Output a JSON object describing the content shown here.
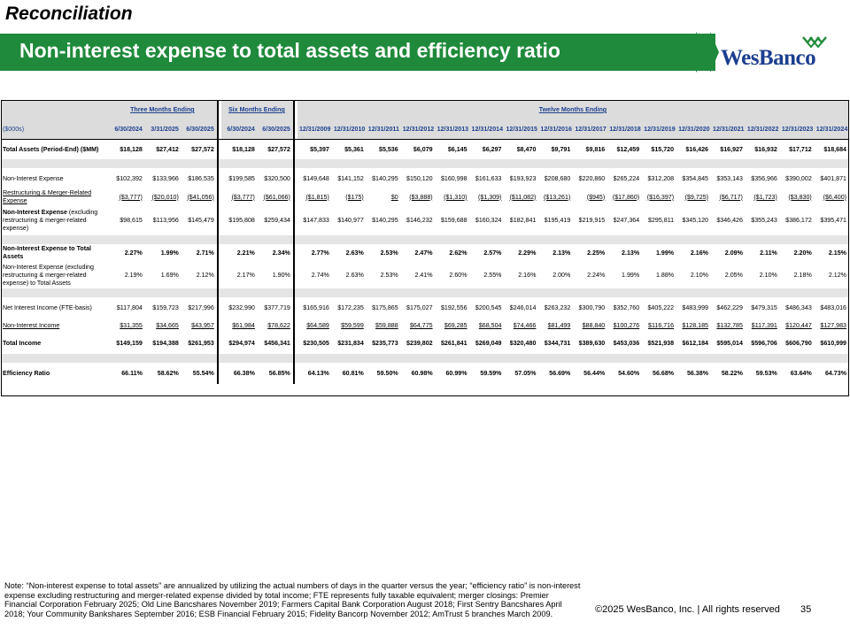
{
  "header": {
    "section": "Reconciliation",
    "title": "Non-interest expense to total assets and efficiency ratio",
    "logo_text": "WesBanco"
  },
  "table": {
    "group_three": "Three Months Ending",
    "group_six": "Six Months Ending",
    "group_twelve": "Twelve Months Ending",
    "unit_label": "($000s)",
    "columns": [
      "6/30/2024",
      "3/31/2025",
      "6/30/2025",
      "6/30/2024",
      "6/30/2025",
      "12/31/2009",
      "12/31/2010",
      "12/31/2011",
      "12/31/2012",
      "12/31/2013",
      "12/31/2014",
      "12/31/2015",
      "12/31/2016",
      "12/31/2017",
      "12/31/2018",
      "12/31/2019",
      "12/31/2020",
      "12/31/2021",
      "12/31/2022",
      "12/31/2023",
      "12/31/2024"
    ],
    "rows": [
      {
        "label": "Total Assets (Period-End) ($MM)",
        "values": [
          "$18,128",
          "$27,412",
          "$27,572",
          "$18,128",
          "$27,572",
          "$5,397",
          "$5,361",
          "$5,536",
          "$6,079",
          "$6,145",
          "$6,297",
          "$8,470",
          "$9,791",
          "$9,816",
          "$12,459",
          "$15,720",
          "$16,426",
          "$16,927",
          "$16,932",
          "$17,712",
          "$18,684"
        ]
      },
      {
        "label": "Non-Interest Expense",
        "values": [
          "$102,392",
          "$133,966",
          "$186,535",
          "$199,585",
          "$320,500",
          "$149,648",
          "$141,152",
          "$140,295",
          "$150,120",
          "$160,998",
          "$161,633",
          "$193,923",
          "$208,680",
          "$220,860",
          "$265,224",
          "$312,208",
          "$354,845",
          "$353,143",
          "$356,966",
          "$390,002",
          "$401,871"
        ]
      },
      {
        "label": "Restructuring & Merger-Related Expense",
        "values": [
          "($3,777)",
          "($20,010)",
          "($41,056)",
          "($3,777)",
          "($61,066)",
          "($1,815)",
          "($175)",
          "$0",
          "($3,888)",
          "($1,310)",
          "($1,309)",
          "($11,082)",
          "($13,261)",
          "($945)",
          "($17,860)",
          "($16,397)",
          "($9,725)",
          "($6,717)",
          "($1,723)",
          "($3,830)",
          "($6,400)"
        ]
      },
      {
        "label_bold": "Non-Interest Expense",
        "label_rest": " (excluding restructuring & merger-related expense)",
        "values": [
          "$98,615",
          "$113,956",
          "$145,479",
          "$195,808",
          "$259,434",
          "$147,833",
          "$140,977",
          "$140,295",
          "$146,232",
          "$159,688",
          "$160,324",
          "$182,841",
          "$195,419",
          "$219,915",
          "$247,364",
          "$295,811",
          "$345,120",
          "$346,426",
          "$355,243",
          "$386,172",
          "$395,471"
        ]
      },
      {
        "label": "Non-Interest Expense to Total Assets",
        "values": [
          "2.27%",
          "1.99%",
          "2.71%",
          "2.21%",
          "2.34%",
          "2.77%",
          "2.63%",
          "2.53%",
          "2.47%",
          "2.62%",
          "2.57%",
          "2.29%",
          "2.13%",
          "2.25%",
          "2.13%",
          "1.99%",
          "2.16%",
          "2.09%",
          "2.11%",
          "2.20%",
          "2.15%"
        ]
      },
      {
        "label": "Non-Interest Expense (excluding restructuring & merger-related expense) to Total Assets",
        "values": [
          "2.19%",
          "1.69%",
          "2.12%",
          "2.17%",
          "1.90%",
          "2.74%",
          "2.63%",
          "2.53%",
          "2.41%",
          "2.60%",
          "2.55%",
          "2.16%",
          "2.00%",
          "2.24%",
          "1.99%",
          "1.88%",
          "2.10%",
          "2.05%",
          "2.10%",
          "2.18%",
          "2.12%"
        ]
      },
      {
        "label": "Net Interest Income (FTE-basis)",
        "values": [
          "$117,804",
          "$159,723",
          "$217,996",
          "$232,990",
          "$377,719",
          "$165,916",
          "$172,235",
          "$175,865",
          "$175,027",
          "$192,556",
          "$200,545",
          "$246,014",
          "$263,232",
          "$300,790",
          "$352,760",
          "$405,222",
          "$483,999",
          "$462,229",
          "$479,315",
          "$486,343",
          "$483,016"
        ]
      },
      {
        "label": "Non-Interest Income",
        "values": [
          "$31,355",
          "$34,665",
          "$43,957",
          "$61,984",
          "$78,622",
          "$64,589",
          "$59,599",
          "$59,888",
          "$64,775",
          "$69,285",
          "$68,504",
          "$74,466",
          "$81,499",
          "$88,840",
          "$100,276",
          "$116,716",
          "$128,185",
          "$132,785",
          "$117,391",
          "$120,447",
          "$127,983"
        ]
      },
      {
        "label": "Total Income",
        "values": [
          "$149,159",
          "$194,388",
          "$261,953",
          "$294,974",
          "$456,341",
          "$230,505",
          "$231,834",
          "$235,773",
          "$239,802",
          "$261,841",
          "$269,049",
          "$320,480",
          "$344,731",
          "$389,630",
          "$453,036",
          "$521,938",
          "$612,184",
          "$595,014",
          "$596,706",
          "$606,790",
          "$610,999"
        ]
      },
      {
        "label": "Efficiency Ratio",
        "values": [
          "66.11%",
          "58.62%",
          "55.54%",
          "66.38%",
          "56.85%",
          "64.13%",
          "60.81%",
          "59.50%",
          "60.98%",
          "60.99%",
          "59.59%",
          "57.05%",
          "56.69%",
          "56.44%",
          "54.60%",
          "56.68%",
          "56.38%",
          "58.22%",
          "59.53%",
          "63.64%",
          "64.73%"
        ]
      }
    ]
  },
  "note": "Note: “Non-interest expense to total assets” are annualized by utilizing the actual numbers of days in the quarter versus the year; “efficiency ratio” is non-interest expense excluding restructuring and merger-related expense divided by total income; FTE represents fully taxable equivalent; merger closings: Premier Financial Corporation February 2025; Old Line Bancshares November 2019; Farmers Capital Bank Corporation August 2018; First Sentry Bancshares April 2018; Your Community Bankshares September 2016; ESB Financial February 2015; Fidelity Bancorp November 2012; AmTrust 5 branches March 2009.",
  "footer": {
    "copyright": "©2025 WesBanco, Inc.  |  All rights reserved",
    "page": "35"
  },
  "colors": {
    "brand_green": "#1f8a3b",
    "header_blue": "#1c3f8f",
    "header_gray": "#dcdcdc"
  }
}
